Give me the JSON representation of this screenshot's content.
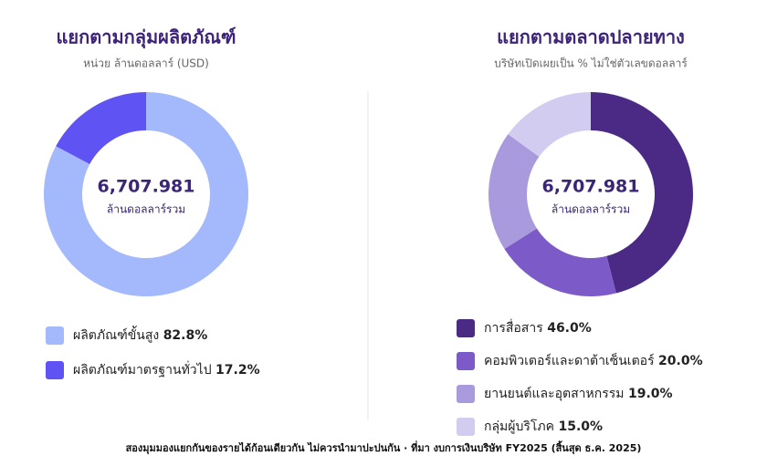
{
  "chart_data": [
    {
      "type": "donut",
      "title": "แยกตามกลุ่มผลิตภัณฑ์",
      "subtitle": "หน่วย ล้านดอลลาร์ (USD)",
      "center_value": "6,707.981",
      "center_label": "ล้านดอลลาร์รวม",
      "categories": [
        "ผลิตภัณฑ์ขั้นสูง",
        "ผลิตภัณฑ์มาตรฐานทั่วไป"
      ],
      "values": [
        82.8,
        17.2
      ],
      "value_labels": [
        "82.8%",
        "17.2%"
      ],
      "colors": [
        "#a4b9fb",
        "#5f54f3"
      ]
    },
    {
      "type": "donut",
      "title": "แยกตามตลาดปลายทาง",
      "subtitle": "บริษัทเปิดเผยเป็น % ไม่ใช่ตัวเลขดอลลาร์",
      "center_value": "6,707.981",
      "center_label": "ล้านดอลลาร์รวม",
      "categories": [
        "การสื่อสาร",
        "คอมพิวเตอร์และดาต้าเซ็นเตอร์",
        "ยานยนต์และอุตสาหกรรม",
        "กลุ่มผู้บริโภค"
      ],
      "values": [
        46.0,
        20.0,
        19.0,
        15.0
      ],
      "value_labels": [
        "46.0%",
        "20.0%",
        "19.0%",
        "15.0%"
      ],
      "colors": [
        "#4b2a86",
        "#7c5bc9",
        "#a999dd",
        "#d3ccf1"
      ]
    }
  ],
  "footnote": "สองมุมมองแยกกันของรายได้ก้อนเดียวกัน ไม่ควรนำมาปะปนกัน · ที่มา งบการเงินบริษัท FY2025 (สิ้นสุด ธ.ค. 2025)"
}
